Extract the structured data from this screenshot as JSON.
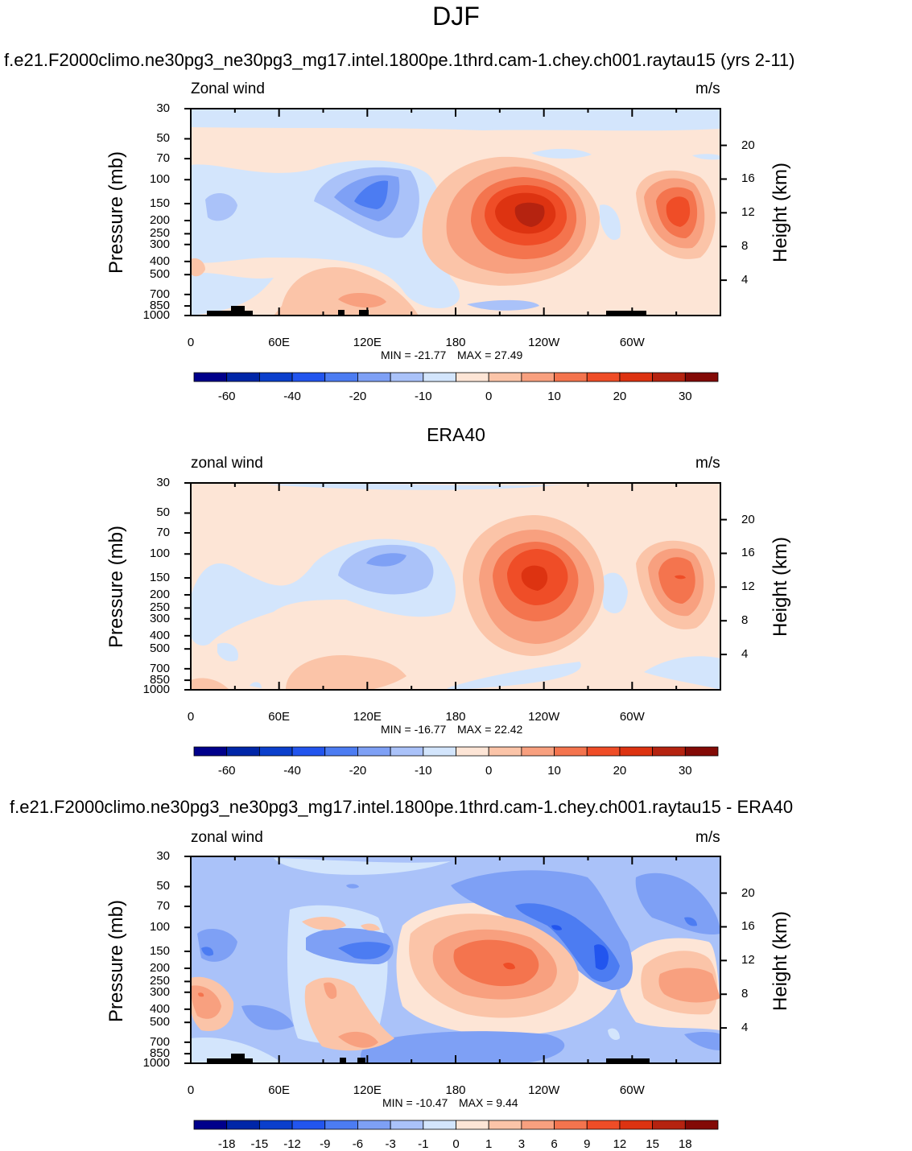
{
  "page": {
    "season_title": "DJF"
  },
  "colors": {
    "levels": [
      "#00008b",
      "#0026a8",
      "#0b3fcc",
      "#2255ee",
      "#4c7cf2",
      "#7ea0f5",
      "#aac2f9",
      "#d3e5fc",
      "#fde5d6",
      "#fbc4a8",
      "#f8a07f",
      "#f4744e",
      "#ef4d27",
      "#dd3311",
      "#b52310",
      "#830a06"
    ]
  },
  "chart_data": [
    {
      "type": "heatmap",
      "title": "f.e21.F2000climo.ne30pg3_ne30pg3_mg17.intel.1800pe.1thrd.cam-1.chey.ch001.raytau15 (yrs 2-11)",
      "left_label": "Zonal wind",
      "right_label": "m/s",
      "ylabel": "Pressure (mb)",
      "ylabel_right": "Height (km)",
      "xlabels": [
        "0",
        "60E",
        "120E",
        "180",
        "120W",
        "60W"
      ],
      "pressure_ticks": [
        "30",
        "50",
        "70",
        "100",
        "150",
        "200",
        "250",
        "300",
        "400",
        "500",
        "700",
        "850",
        "1000"
      ],
      "height_ticks": [
        "20",
        "16",
        "12",
        "8",
        "4"
      ],
      "min_label": "MIN = -21.77",
      "max_label": "MAX =  27.49",
      "colorbar_labels": [
        "-60",
        "-40",
        "-20",
        "-10",
        "0",
        "10",
        "20",
        "30"
      ]
    },
    {
      "type": "heatmap",
      "title": "ERA40",
      "left_label": "zonal wind",
      "right_label": "m/s",
      "ylabel": "Pressure (mb)",
      "ylabel_right": "Height (km)",
      "xlabels": [
        "0",
        "60E",
        "120E",
        "180",
        "120W",
        "60W"
      ],
      "pressure_ticks": [
        "30",
        "50",
        "70",
        "100",
        "150",
        "200",
        "250",
        "300",
        "400",
        "500",
        "700",
        "850",
        "1000"
      ],
      "height_ticks": [
        "20",
        "16",
        "12",
        "8",
        "4"
      ],
      "min_label": "MIN = -16.77",
      "max_label": "MAX =  22.42",
      "colorbar_labels": [
        "-60",
        "-40",
        "-20",
        "-10",
        "0",
        "10",
        "20",
        "30"
      ]
    },
    {
      "type": "heatmap",
      "title": "f.e21.F2000climo.ne30pg3_ne30pg3_mg17.intel.1800pe.1thrd.cam-1.chey.ch001.raytau15 - ERA40",
      "left_label": "zonal wind",
      "right_label": "m/s",
      "ylabel": "Pressure (mb)",
      "ylabel_right": "Height (km)",
      "xlabels": [
        "0",
        "60E",
        "120E",
        "180",
        "120W",
        "60W"
      ],
      "pressure_ticks": [
        "30",
        "50",
        "70",
        "100",
        "150",
        "200",
        "250",
        "300",
        "400",
        "500",
        "700",
        "850",
        "1000"
      ],
      "height_ticks": [
        "20",
        "16",
        "12",
        "8",
        "4"
      ],
      "min_label": "MIN = -10.47",
      "max_label": "MAX =   9.44",
      "colorbar_labels": [
        "-18",
        "-15",
        "-12",
        "-9",
        "-6",
        "-3",
        "-1",
        "0",
        "1",
        "3",
        "6",
        "9",
        "12",
        "15",
        "18"
      ]
    }
  ]
}
